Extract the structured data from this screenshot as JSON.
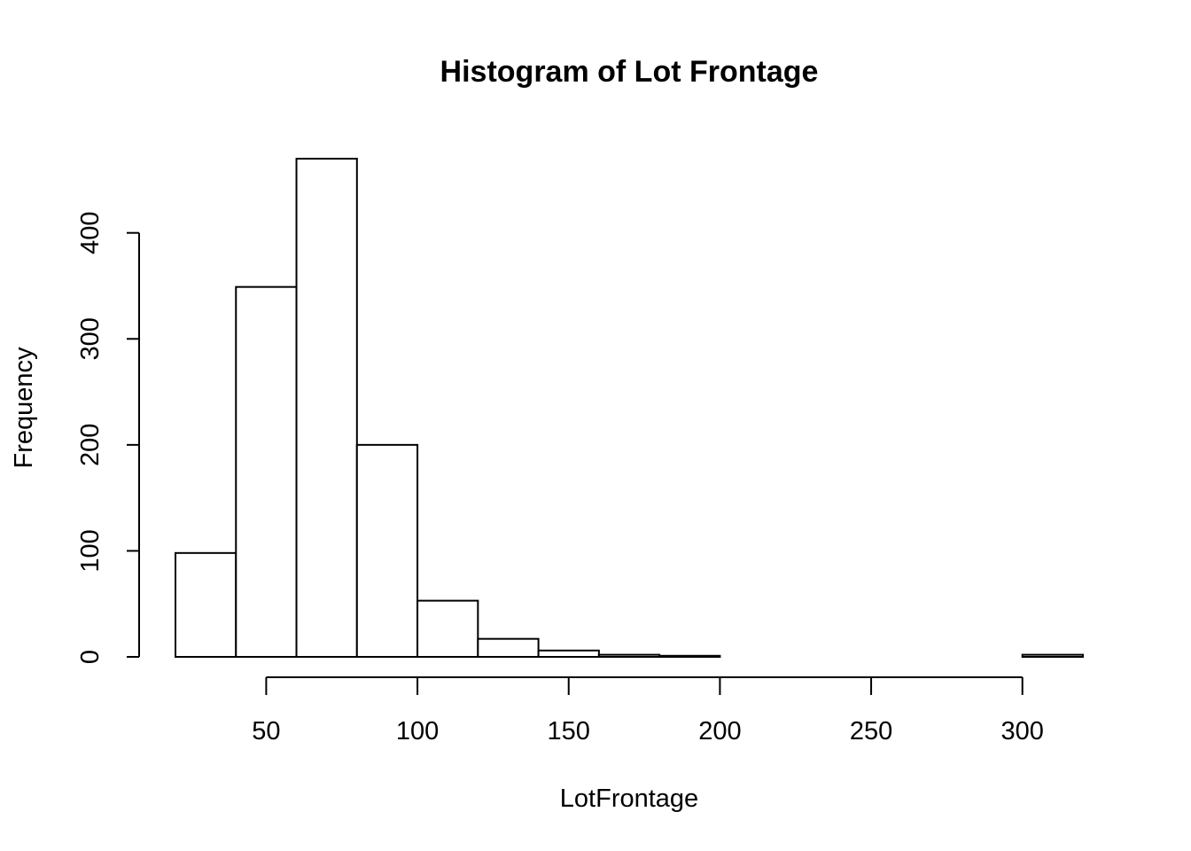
{
  "chart_data": {
    "type": "histogram",
    "title": "Histogram of Lot Frontage",
    "xlabel": "LotFrontage",
    "ylabel": "Frequency",
    "bin_edges": [
      20,
      40,
      60,
      80,
      100,
      120,
      140,
      160,
      180,
      200,
      220,
      240,
      260,
      280,
      300,
      320
    ],
    "values": [
      98,
      349,
      470,
      200,
      53,
      17,
      6,
      2,
      1,
      0,
      0,
      0,
      0,
      0,
      2
    ],
    "xlim": [
      20,
      320
    ],
    "ylim": [
      0,
      470
    ],
    "x_ticks": [
      50,
      100,
      150,
      200,
      250,
      300
    ],
    "y_ticks": [
      0,
      100,
      200,
      300,
      400
    ],
    "x_tick_labels": [
      "50",
      "100",
      "150",
      "200",
      "250",
      "300"
    ],
    "y_tick_labels": [
      "0",
      "100",
      "200",
      "300",
      "400"
    ],
    "grid": false,
    "legend": "none",
    "bar_fill": "#ffffff",
    "bar_stroke": "#000000"
  }
}
